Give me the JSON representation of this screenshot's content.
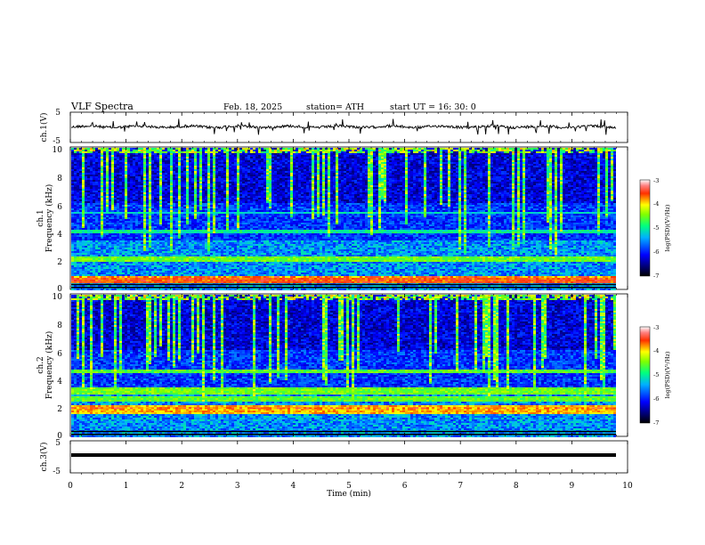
{
  "header": {
    "title": "VLF  Spectra",
    "date": "Feb. 18, 2025",
    "station": "station= ATH",
    "start": "start  UT  =    16: 30: 0"
  },
  "chart_data": [
    {
      "type": "line",
      "ylabel": "ch.1(V)",
      "ylim": [
        -5,
        5
      ],
      "xlim": [
        0,
        10
      ],
      "yticks": [
        "5",
        "-5"
      ],
      "description_values": {
        "baseline_V": 0.2
      }
    },
    {
      "type": "heatmap",
      "ylabel_top": "ch.1",
      "ylabel": "Frequency  (kHz)",
      "ylim": [
        0,
        10
      ],
      "yticks": [
        "10",
        "8",
        "6",
        "4",
        "2",
        "0"
      ],
      "xlim": [
        0,
        10
      ],
      "colorbar": {
        "label": "log(PSD)(V²/Hz)",
        "ticks": [
          "-3",
          "-4",
          "-5",
          "-6",
          "-7"
        ],
        "range": [
          -7,
          -3
        ]
      }
    },
    {
      "type": "heatmap",
      "ylabel_top": "ch.2",
      "ylabel": "Frequency  (kHz)",
      "ylim": [
        0,
        10
      ],
      "yticks": [
        "10",
        "8",
        "6",
        "4",
        "2",
        "0"
      ],
      "xlim": [
        0,
        10
      ],
      "colorbar": {
        "label": "log(PSD)(V²/Hz)",
        "ticks": [
          "-3",
          "-4",
          "-5",
          "-6",
          "-7"
        ],
        "range": [
          -7,
          -3
        ]
      }
    },
    {
      "type": "line",
      "ylabel": "ch.3(V)",
      "ylim": [
        -5,
        5
      ],
      "xlim": [
        0,
        10
      ],
      "yticks": [
        "5",
        "-5"
      ],
      "xlabel": "Time  (min)",
      "xticks": [
        "0",
        "1",
        "2",
        "3",
        "4",
        "5",
        "6",
        "7",
        "8",
        "9",
        "10"
      ],
      "description_values": {
        "constant_V": -0.8
      }
    }
  ]
}
